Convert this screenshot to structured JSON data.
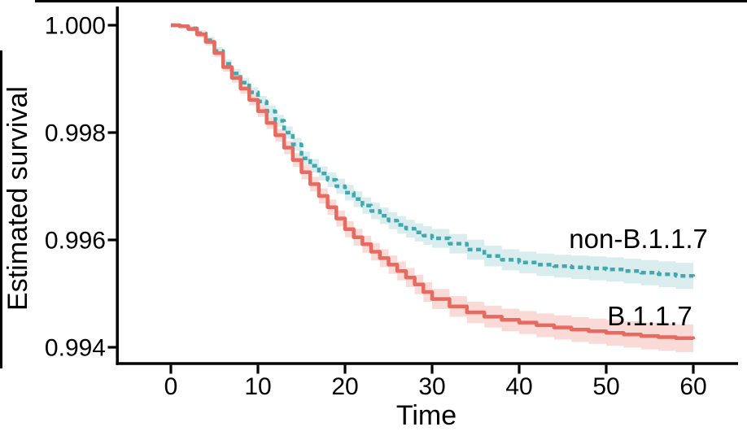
{
  "figure": {
    "background": "#ffffff",
    "border_color": "#000000"
  },
  "chart_data": {
    "type": "line",
    "subtype": "kaplan-meier-survival-step",
    "title": "",
    "xlabel": "Time",
    "ylabel": "Estimated survival",
    "xlim": [
      0,
      60
    ],
    "ylim": [
      0.994,
      1.0
    ],
    "grid": false,
    "legend": "direct-labels",
    "x_ticks": [
      0,
      10,
      20,
      30,
      40,
      50,
      60
    ],
    "x_tick_labels": [
      "0",
      "10",
      "20",
      "30",
      "40",
      "50",
      "60"
    ],
    "y_ticks": [
      1.0,
      0.998,
      0.996,
      0.994
    ],
    "y_tick_labels": [
      "1.000",
      "0.998",
      "0.996",
      "0.994"
    ],
    "axis_color": "#000000",
    "series": [
      {
        "id": "non-b117",
        "name": "non-B.1.1.7",
        "line_style": "dashed",
        "color": "#3fa9ad",
        "band_color": "#d9edee",
        "ci_coeff": 3.2e-05,
        "x": [
          0,
          1,
          2,
          3,
          4,
          5,
          6,
          7,
          8,
          9,
          10,
          11,
          12,
          13,
          14,
          15,
          16,
          17,
          18,
          19,
          20,
          21,
          22,
          23,
          24,
          25,
          26,
          27,
          28,
          29,
          30,
          32,
          34,
          36,
          38,
          40,
          42,
          44,
          46,
          48,
          50,
          52,
          54,
          56,
          58,
          60
        ],
        "y": [
          1.0,
          0.99998,
          0.99994,
          0.99985,
          0.99972,
          0.99952,
          0.99928,
          0.9991,
          0.99893,
          0.99875,
          0.99858,
          0.9984,
          0.99822,
          0.998,
          0.99778,
          0.99752,
          0.99738,
          0.99724,
          0.99712,
          0.997,
          0.99688,
          0.99676,
          0.99664,
          0.99654,
          0.99645,
          0.99636,
          0.99628,
          0.99621,
          0.99614,
          0.99608,
          0.99603,
          0.99593,
          0.99582,
          0.9957,
          0.99563,
          0.99558,
          0.99554,
          0.99551,
          0.99549,
          0.99547,
          0.99545,
          0.99542,
          0.99539,
          0.99536,
          0.99533,
          0.9953
        ]
      },
      {
        "id": "b117",
        "name": "B.1.1.7",
        "line_style": "solid",
        "color": "#e66a5f",
        "band_color": "#f9dad7",
        "ci_coeff": 3.4e-05,
        "x": [
          0,
          1,
          2,
          3,
          4,
          5,
          6,
          7,
          8,
          9,
          10,
          11,
          12,
          13,
          14,
          15,
          16,
          17,
          18,
          19,
          20,
          21,
          22,
          23,
          24,
          25,
          26,
          27,
          28,
          29,
          30,
          32,
          34,
          36,
          38,
          40,
          42,
          44,
          46,
          48,
          50,
          52,
          54,
          56,
          58,
          60
        ],
        "y": [
          1.0,
          0.99998,
          0.99993,
          0.99983,
          0.99969,
          0.99948,
          0.99922,
          0.99902,
          0.99882,
          0.99861,
          0.9984,
          0.99818,
          0.99795,
          0.99772,
          0.99749,
          0.99726,
          0.99704,
          0.99682,
          0.99661,
          0.9964,
          0.9962,
          0.99605,
          0.99592,
          0.99578,
          0.99566,
          0.99554,
          0.99542,
          0.9953,
          0.99517,
          0.99503,
          0.9949,
          0.99476,
          0.99465,
          0.99457,
          0.99451,
          0.99446,
          0.99441,
          0.99437,
          0.99433,
          0.9943,
          0.99427,
          0.99424,
          0.99421,
          0.99419,
          0.99417,
          0.99415
        ]
      }
    ],
    "annotations": [
      {
        "text": "non-B.1.1.7",
        "series": "non-b117",
        "t": 53.7,
        "s": 0.99603
      },
      {
        "text": "B.1.1.7",
        "series": "b117",
        "t": 55.0,
        "s": 0.99459
      }
    ]
  }
}
